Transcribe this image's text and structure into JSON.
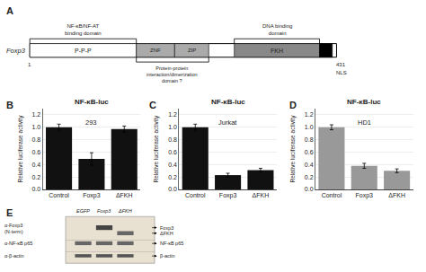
{
  "chart_data": [
    {
      "type": "diagram",
      "annotations": [
        "A",
        "Foxp3",
        "P-P-P",
        "ZNF",
        "ZIP",
        "FKH",
        "1",
        "431",
        "NLS",
        "NF-κB/NF-AT\nbinding domain",
        "DNA binding\ndomain",
        "Protein-protein\ninteraction/dimerization\ndomain ?"
      ]
    },
    {
      "type": "bar",
      "title": "NF-κB-luc",
      "subtitle": "293",
      "annotations": [
        "B"
      ],
      "categories": [
        "Control",
        "Foxp3",
        "ΔFKH"
      ],
      "values": [
        1.0,
        0.49,
        0.97
      ],
      "errors": [
        0.05,
        0.1,
        0.05
      ],
      "color": "#111111",
      "ylabel": "Relative luciferase activity",
      "ylim": [
        0,
        1.3
      ],
      "yticks": [
        {
          "value": 0,
          "label": "0.0"
        },
        0.2,
        0.4,
        0.6,
        0.8,
        {
          "value": 1,
          "label": "1.0"
        },
        1.2
      ],
      "grid": true
    },
    {
      "type": "bar",
      "title": "NF-κB-luc",
      "subtitle": "Jurkat",
      "annotations": [
        "C"
      ],
      "categories": [
        "Control",
        "Foxp3",
        "ΔFKH"
      ],
      "values": [
        1.0,
        0.23,
        0.31
      ],
      "errors": [
        0.05,
        0.03,
        0.03
      ],
      "color": "#111111",
      "ylabel": "Relative luciferase activity",
      "ylim": [
        0,
        1.3
      ],
      "yticks": [
        {
          "value": 0,
          "label": "0.0"
        },
        0.2,
        0.4,
        0.6,
        0.8,
        {
          "value": 1,
          "label": "1.0"
        },
        1.2
      ],
      "grid": true
    },
    {
      "type": "bar",
      "title": "NF-κB-luc",
      "subtitle": "HD1",
      "annotations": [
        "D"
      ],
      "categories": [
        "Control",
        "Foxp3",
        "ΔFKH"
      ],
      "values": [
        1.0,
        0.38,
        0.3
      ],
      "errors": [
        0.04,
        0.04,
        0.03
      ],
      "color": "#999999",
      "ylabel": "Relative luciferase activity",
      "ylim": [
        0,
        1.3
      ],
      "yticks": [
        {
          "value": 0,
          "label": "0.0"
        },
        0.2,
        0.4,
        0.6,
        0.8,
        {
          "value": 1,
          "label": "1.0"
        },
        1.2
      ],
      "grid": true
    },
    {
      "type": "diagram",
      "annotations": [
        "E",
        "EGFP",
        "Foxp3",
        "ΔFKH",
        "α-Foxp3",
        "(N-term)",
        "Foxp3",
        "ΔFKH",
        "α-NF-κB p65",
        "NF-κB p65",
        "α-β-actin",
        "β-actin"
      ]
    }
  ]
}
